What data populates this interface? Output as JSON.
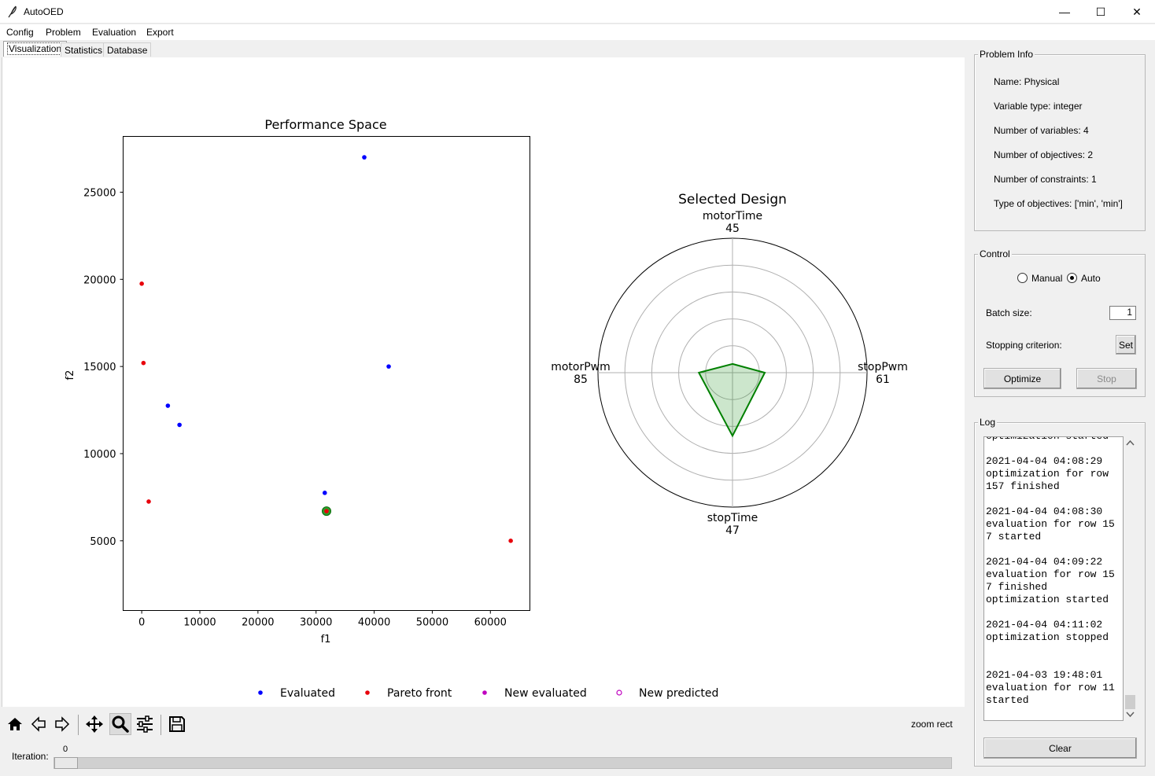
{
  "window": {
    "title": "AutoOED",
    "minimize": "—",
    "maximize": "☐",
    "close": "✕"
  },
  "menu": [
    "Config",
    "Problem",
    "Evaluation",
    "Export"
  ],
  "tabs": [
    "Visualization",
    "Statistics",
    "Database"
  ],
  "performance_plot": {
    "title": "Performance Space",
    "xlabel": "f1",
    "ylabel": "f2",
    "xticks": [
      "0",
      "10000",
      "20000",
      "30000",
      "40000",
      "50000",
      "60000"
    ],
    "yticks": [
      "5000",
      "10000",
      "15000",
      "20000",
      "25000"
    ]
  },
  "radar_plot": {
    "title": "Selected Design",
    "axes": [
      {
        "name": "motorTime",
        "value": "45"
      },
      {
        "name": "stopPwm",
        "value": "61"
      },
      {
        "name": "stopTime",
        "value": "47"
      },
      {
        "name": "motorPwm",
        "value": "85"
      }
    ]
  },
  "chart_data": [
    {
      "type": "scatter",
      "title": "Performance Space",
      "xlabel": "f1",
      "ylabel": "f2",
      "xlim": [
        -3200,
        66800
      ],
      "ylim": [
        1000,
        28200
      ],
      "series": [
        {
          "name": "Evaluated",
          "color": "#0000ff",
          "points": [
            [
              38300,
              27000
            ],
            [
              42500,
              15000
            ],
            [
              4500,
              12750
            ],
            [
              6500,
              11650
            ],
            [
              31500,
              7750
            ]
          ]
        },
        {
          "name": "Pareto front",
          "color": "#e8000b",
          "points": [
            [
              0,
              19750
            ],
            [
              300,
              15200
            ],
            [
              1200,
              7250
            ],
            [
              31800,
              6700
            ],
            [
              63500,
              5000
            ]
          ]
        }
      ],
      "selected_point": [
        31800,
        6700
      ]
    },
    {
      "type": "radar",
      "title": "Selected Design",
      "axes": [
        "motorTime",
        "stopPwm",
        "stopTime",
        "motorPwm"
      ],
      "values": [
        45,
        61,
        47,
        85
      ],
      "shape_radii": [
        0.065,
        0.24,
        0.47,
        0.25
      ],
      "rings": 5
    }
  ],
  "legend": [
    {
      "label": "Evaluated",
      "color": "#0000ff",
      "style": "filled"
    },
    {
      "label": "Pareto front",
      "color": "#e8000b",
      "style": "filled"
    },
    {
      "label": "New evaluated",
      "color": "#bf00bf",
      "style": "filled"
    },
    {
      "label": "New predicted",
      "color": "#bf00bf",
      "style": "hollow"
    }
  ],
  "toolbar": {
    "status": "zoom rect"
  },
  "iteration": {
    "label": "Iteration:",
    "value": "0"
  },
  "problem_info": {
    "title": "Problem Info",
    "lines": [
      "Name: Physical",
      "Variable type: integer",
      "Number of variables: 4",
      "Number of objectives: 2",
      "Number of constraints: 1",
      "Type of objectives: ['min', 'min']"
    ]
  },
  "control": {
    "title": "Control",
    "mode_manual": "Manual",
    "mode_auto": "Auto",
    "batch_label": "Batch size:",
    "batch_value": "1",
    "stopping_label": "Stopping criterion:",
    "set_label": "Set",
    "optimize_label": "Optimize",
    "stop_label": "Stop"
  },
  "log": {
    "title": "Log",
    "text": "optimization started\n\n2021-04-04 04:08:29\noptimization for row\n157 finished\n\n2021-04-04 04:08:30\nevaluation for row 15\n7 started\n\n2021-04-04 04:09:22\nevaluation for row 15\n7 finished\noptimization started\n\n2021-04-04 04:11:02\noptimization stopped\n\n\n2021-04-03 19:48:01\nevaluation for row 11\nstarted",
    "clear_label": "Clear"
  }
}
